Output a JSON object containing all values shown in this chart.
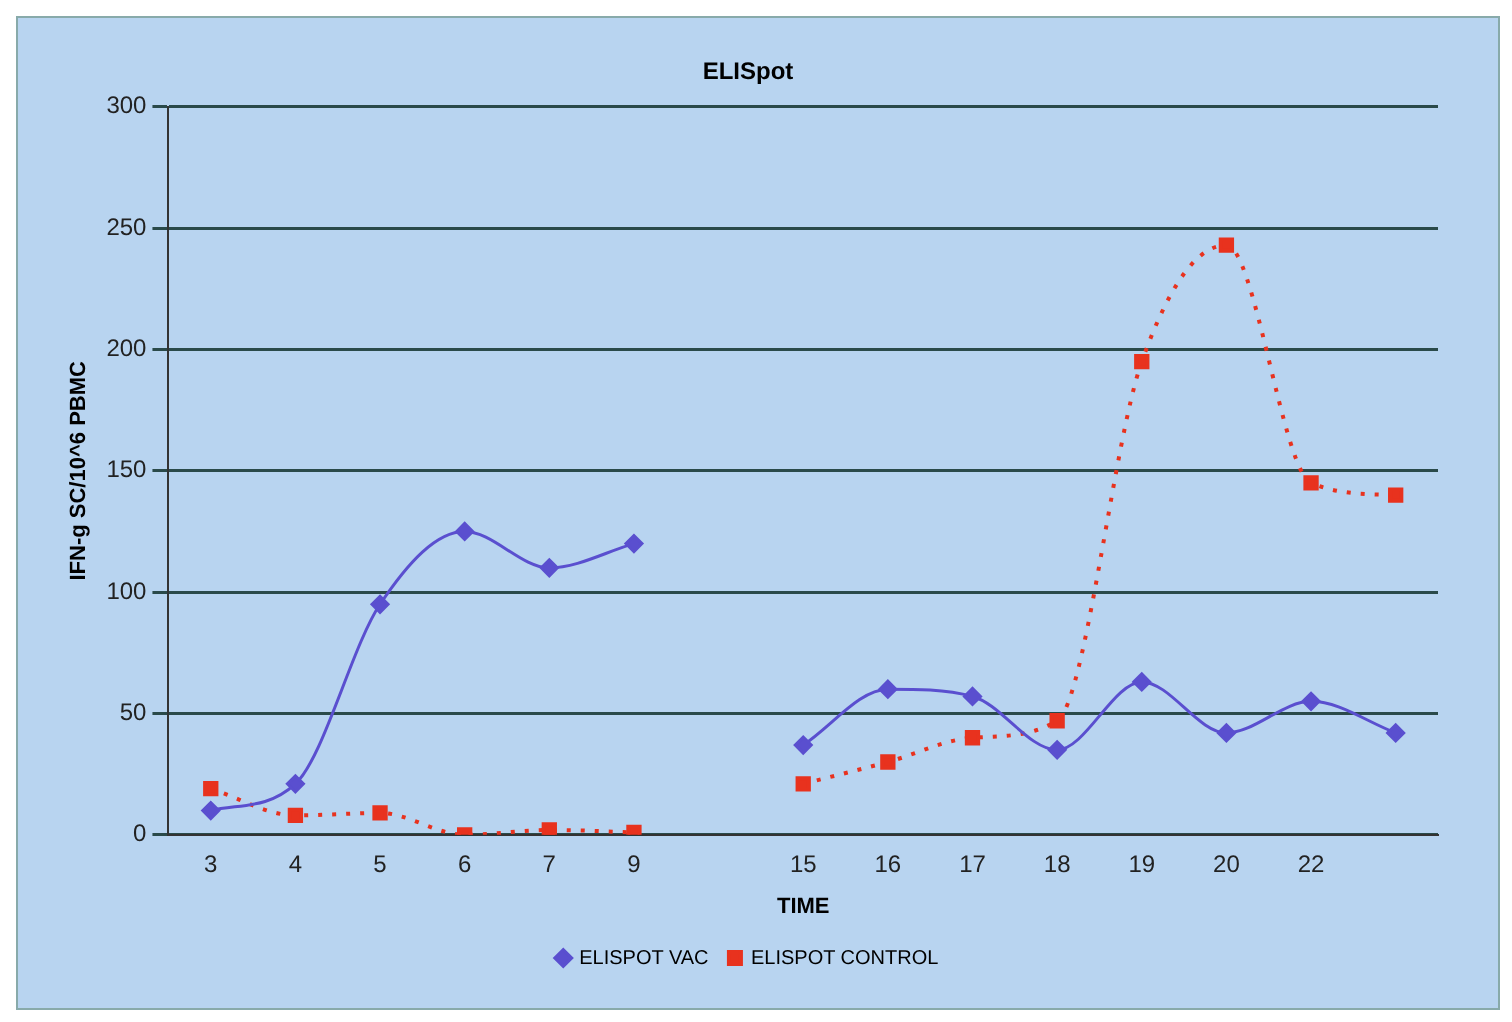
{
  "chart_data": {
    "type": "line",
    "title": "ELISpot",
    "xlabel": "TIME",
    "ylabel": "IFN-g SC/10^6 PBMC",
    "categories": [
      "3",
      "4",
      "5",
      "6",
      "7",
      "9",
      null,
      "15",
      "16",
      "17",
      "18",
      "19",
      "20",
      "22",
      null
    ],
    "series": [
      {
        "name": "ELISPOT VAC",
        "color": "#5a4fcf",
        "marker": "diamond",
        "line_style": "solid",
        "values": [
          10,
          21,
          95,
          125,
          110,
          120,
          null,
          37,
          60,
          57,
          35,
          63,
          42,
          55,
          42
        ]
      },
      {
        "name": "ELISPOT CONTROL",
        "color": "#e8321e",
        "marker": "square",
        "line_style": "dotted",
        "values": [
          19,
          8,
          9,
          0,
          2,
          1,
          null,
          21,
          30,
          40,
          47,
          195,
          243,
          145,
          140
        ]
      }
    ],
    "ylim": [
      0,
      300
    ],
    "yticks": [
      0,
      50,
      100,
      150,
      200,
      250,
      300
    ],
    "grid": "y",
    "legend": "bottom"
  }
}
